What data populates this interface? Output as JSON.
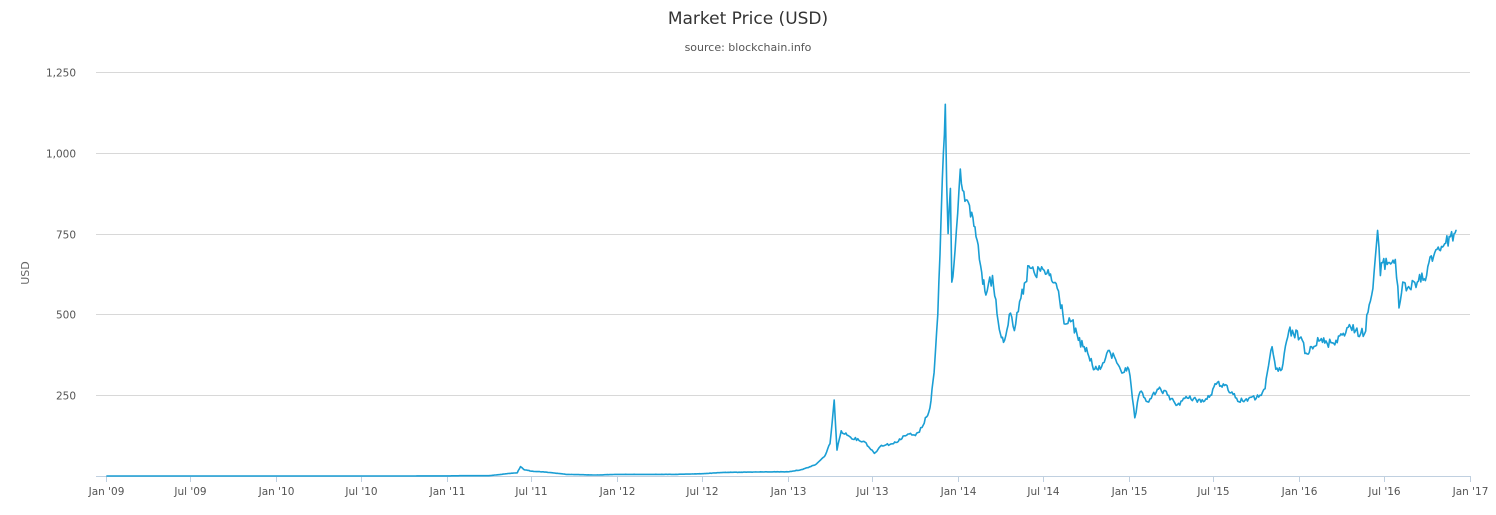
{
  "chart_data": {
    "type": "line",
    "title": "Market Price (USD)",
    "subtitle": "source: blockchain.info",
    "xlabel": "",
    "ylabel": "USD",
    "ylim": [
      0,
      1250
    ],
    "xlim": [
      "2009-01-01",
      "2017-01-01"
    ],
    "yticks": [
      250,
      500,
      750,
      1000,
      1250
    ],
    "ytick_labels": [
      "250",
      "500",
      "750",
      "1,000",
      "1,250"
    ],
    "xticks": [
      "2009-01-01",
      "2009-07-01",
      "2010-01-01",
      "2010-07-01",
      "2011-01-01",
      "2011-07-01",
      "2012-01-01",
      "2012-07-01",
      "2013-01-01",
      "2013-07-01",
      "2014-01-01",
      "2014-07-01",
      "2015-01-01",
      "2015-07-01",
      "2016-01-01",
      "2016-07-01",
      "2017-01-01"
    ],
    "xtick_labels": [
      "Jan '09",
      "Jul '09",
      "Jan '10",
      "Jul '10",
      "Jan '11",
      "Jul '11",
      "Jan '12",
      "Jul '12",
      "Jan '13",
      "Jul '13",
      "Jan '14",
      "Jul '14",
      "Jan '15",
      "Jul '15",
      "Jan '16",
      "Jul '16",
      "Jan '17"
    ],
    "grid": true,
    "legend": "none",
    "colors": {
      "line": "#1a9ed4",
      "grid": "#d8d8d8",
      "axis": "#c0d0e0"
    },
    "series": [
      {
        "x": [
          "2009-01-03",
          "2009-07-01",
          "2010-01-01",
          "2010-07-01",
          "2010-10-01",
          "2011-01-01",
          "2011-02-10",
          "2011-04-01",
          "2011-05-15",
          "2011-06-01",
          "2011-06-08",
          "2011-06-15",
          "2011-07-01",
          "2011-08-01",
          "2011-09-15",
          "2011-11-15",
          "2012-01-01",
          "2012-03-01",
          "2012-05-01",
          "2012-07-01",
          "2012-08-15",
          "2012-10-01",
          "2012-12-01",
          "2013-01-01",
          "2013-02-01",
          "2013-03-01",
          "2013-03-20",
          "2013-04-01",
          "2013-04-10",
          "2013-04-16",
          "2013-04-25",
          "2013-05-15",
          "2013-06-15",
          "2013-07-05",
          "2013-07-20",
          "2013-08-15",
          "2013-09-15",
          "2013-10-01",
          "2013-10-15",
          "2013-11-01",
          "2013-11-10",
          "2013-11-18",
          "2013-11-25",
          "2013-11-30",
          "2013-12-04",
          "2013-12-07",
          "2013-12-10",
          "2013-12-15",
          "2013-12-18",
          "2013-12-25",
          "2014-01-05",
          "2014-01-15",
          "2014-02-01",
          "2014-02-10",
          "2014-02-20",
          "2014-03-01",
          "2014-03-15",
          "2014-04-01",
          "2014-04-10",
          "2014-04-20",
          "2014-05-01",
          "2014-05-15",
          "2014-05-25",
          "2014-06-01",
          "2014-06-15",
          "2014-07-01",
          "2014-07-15",
          "2014-08-01",
          "2014-08-18",
          "2014-09-01",
          "2014-09-15",
          "2014-09-25",
          "2014-10-05",
          "2014-10-20",
          "2014-11-01",
          "2014-11-15",
          "2014-12-01",
          "2014-12-20",
          "2015-01-01",
          "2015-01-14",
          "2015-01-25",
          "2015-02-10",
          "2015-03-01",
          "2015-03-10",
          "2015-03-25",
          "2015-04-15",
          "2015-05-01",
          "2015-05-20",
          "2015-06-10",
          "2015-06-25",
          "2015-07-10",
          "2015-07-25",
          "2015-08-10",
          "2015-08-25",
          "2015-09-15",
          "2015-10-01",
          "2015-10-20",
          "2015-11-04",
          "2015-11-12",
          "2015-11-25",
          "2015-12-10",
          "2015-12-20",
          "2016-01-05",
          "2016-01-16",
          "2016-01-25",
          "2016-02-15",
          "2016-03-01",
          "2016-03-20",
          "2016-04-15",
          "2016-05-01",
          "2016-05-20",
          "2016-05-30",
          "2016-06-07",
          "2016-06-17",
          "2016-06-23",
          "2016-06-28",
          "2016-07-10",
          "2016-07-25",
          "2016-08-02",
          "2016-08-10",
          "2016-08-25",
          "2016-09-10",
          "2016-09-25",
          "2016-10-05",
          "2016-10-20",
          "2016-11-01",
          "2016-11-10",
          "2016-11-20",
          "2016-11-28",
          "2016-12-02"
        ],
        "y": [
          0,
          0,
          0,
          0.1,
          0.1,
          0.3,
          1,
          0.8,
          8,
          10,
          29,
          20,
          15,
          12,
          5,
          3,
          5,
          5,
          5,
          7,
          11,
          12,
          13,
          13,
          20,
          35,
          60,
          100,
          235,
          80,
          140,
          120,
          105,
          70,
          95,
          100,
          130,
          125,
          150,
          210,
          320,
          500,
          800,
          1000,
          1150,
          900,
          750,
          890,
          600,
          700,
          950,
          850,
          800,
          730,
          630,
          560,
          620,
          440,
          420,
          500,
          450,
          550,
          600,
          650,
          620,
          640,
          620,
          580,
          470,
          480,
          420,
          400,
          380,
          330,
          330,
          380,
          370,
          320,
          330,
          180,
          260,
          230,
          260,
          270,
          250,
          220,
          240,
          240,
          230,
          250,
          290,
          280,
          260,
          230,
          240,
          240,
          270,
          400,
          330,
          330,
          450,
          440,
          430,
          380,
          400,
          420,
          410,
          420,
          460,
          450,
          440,
          530,
          580,
          760,
          620,
          660,
          660,
          670,
          520,
          600,
          580,
          600,
          610,
          660,
          700,
          710,
          720,
          740,
          750,
          760
        ]
      }
    ]
  }
}
